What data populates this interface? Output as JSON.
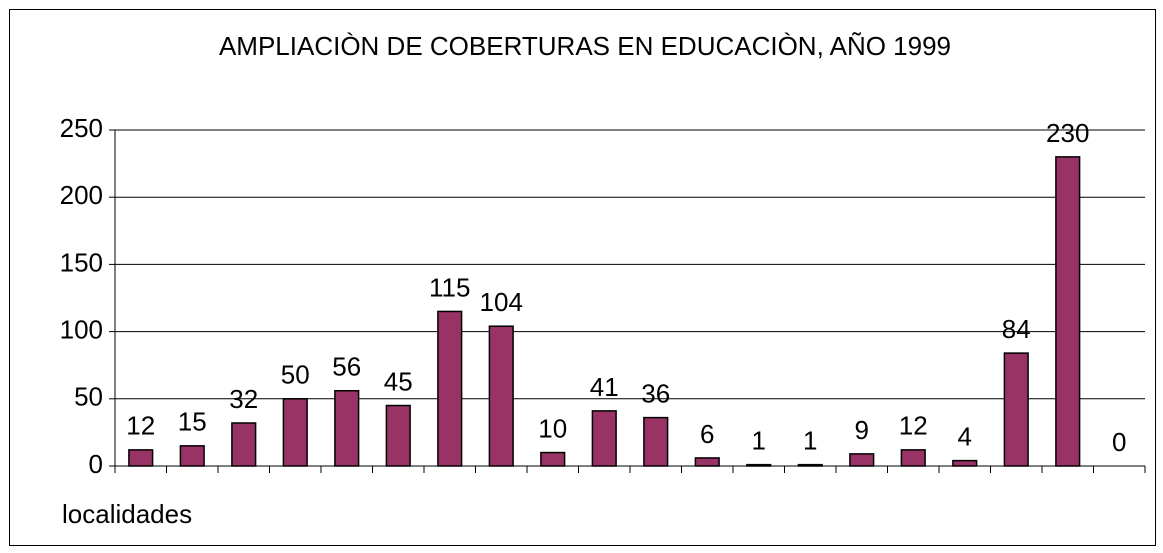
{
  "chart_data": {
    "type": "bar",
    "title": "AMPLIACIÒN DE COBERTURAS EN EDUCACIÒN, AÑO 1999",
    "x_label": "localidades",
    "categories": [
      null,
      null,
      null,
      null,
      null,
      null,
      null,
      null,
      null,
      null,
      null,
      null,
      null,
      null,
      null,
      null,
      null,
      null,
      null,
      null
    ],
    "values": [
      12,
      15,
      32,
      50,
      56,
      45,
      115,
      104,
      10,
      41,
      36,
      6,
      1,
      1,
      9,
      12,
      4,
      84,
      230,
      0
    ],
    "color": "#993366",
    "ylim": [
      0,
      250
    ],
    "yticks": [
      0,
      50,
      100,
      150,
      200,
      250
    ],
    "grid": true
  }
}
